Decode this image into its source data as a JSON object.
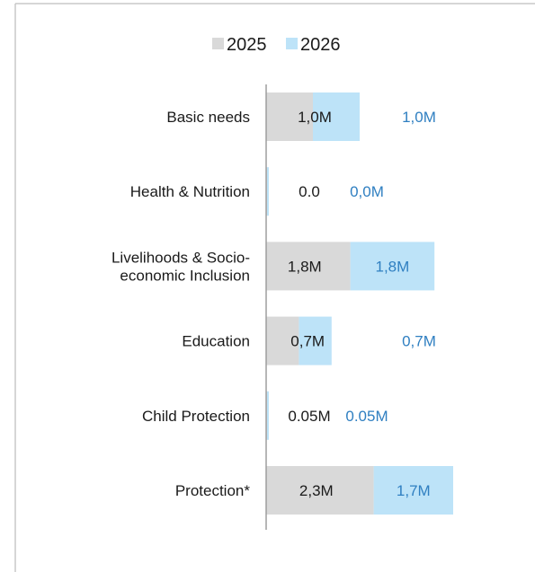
{
  "chart_data": {
    "type": "bar",
    "orientation": "horizontal",
    "stacked": true,
    "title": "",
    "xlabel": "",
    "ylabel": "",
    "grid": false,
    "legend_position": "top",
    "xlim": [
      0,
      4.6
    ],
    "categories": [
      "Basic needs",
      "Health & Nutrition",
      "Livelihoods & Socio-economic Inclusion",
      "Education",
      "Child Protection",
      "Protection*"
    ],
    "category_label_lines": [
      [
        "Basic needs"
      ],
      [
        "Health & Nutrition"
      ],
      [
        "Livelihoods & Socio-",
        "economic Inclusion"
      ],
      [
        "Education"
      ],
      [
        "Child Protection"
      ],
      [
        "Protection*"
      ]
    ],
    "series": [
      {
        "name": "2025",
        "color": "#d9d9d9",
        "values": [
          1.0,
          0.0,
          1.8,
          0.7,
          0.05,
          2.3
        ],
        "data_labels": [
          "1,0M",
          "0.0",
          "1,8M",
          "0,7M",
          "0.05M",
          "2,3M"
        ]
      },
      {
        "name": "2026",
        "color": "#bde3f8",
        "values": [
          1.0,
          0.0,
          1.8,
          0.7,
          0.05,
          1.7
        ],
        "data_labels": [
          "1,0M",
          "0,0M",
          "1,8M",
          "0,7M",
          "0.05M",
          "1,7M"
        ]
      }
    ]
  }
}
